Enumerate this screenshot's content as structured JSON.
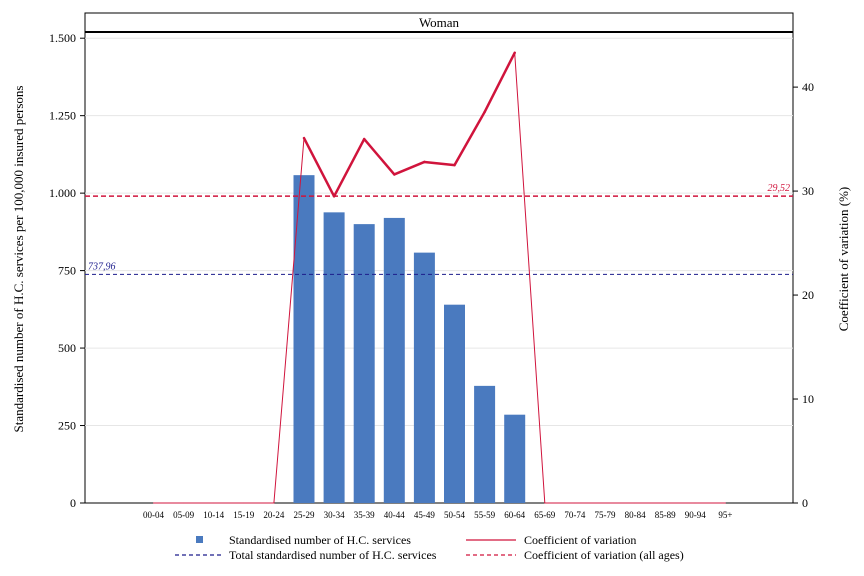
{
  "chart_data": {
    "type": "bar",
    "panel_title": "Woman",
    "categories": [
      "00-04",
      "05-09",
      "10-14",
      "15-19",
      "20-24",
      "25-29",
      "30-34",
      "35-39",
      "40-44",
      "45-49",
      "50-54",
      "55-59",
      "60-64",
      "65-69",
      "70-74",
      "75-79",
      "80-84",
      "85-89",
      "90-94",
      "95+"
    ],
    "series": [
      {
        "name": "Standardised number of H.C. services",
        "kind": "bar",
        "axis": "left",
        "color": "#4a7abf",
        "values": [
          null,
          null,
          null,
          null,
          null,
          1058,
          938,
          900,
          920,
          808,
          640,
          378,
          285,
          null,
          null,
          null,
          null,
          null,
          null,
          null
        ]
      },
      {
        "name": "Coefficient of variation",
        "kind": "line",
        "axis": "right",
        "color": "#d0143c",
        "values": [
          0,
          0,
          0,
          0,
          0,
          35.1,
          29.5,
          35.0,
          31.6,
          32.8,
          32.5,
          37.6,
          43.3,
          0,
          0,
          0,
          0,
          0,
          0,
          0
        ]
      }
    ],
    "reference_lines": [
      {
        "name": "Total standardised number of H.C. services",
        "axis": "left",
        "value": 737.96,
        "label": "737,96",
        "color": "#1c1c8c",
        "style": "dashed"
      },
      {
        "name": "Coefficient of variation (all ages)",
        "axis": "right",
        "value": 29.52,
        "label": "29,52",
        "color": "#d0143c",
        "style": "dashed"
      }
    ],
    "ylabel": "Standardised number of H.C. services per 100,000 insured persons",
    "y2label": "Coefficient of variation (%)",
    "ylim": [
      0,
      1520
    ],
    "y2lim": [
      0,
      45.3
    ],
    "yticks": [
      0,
      250,
      500,
      750,
      1000,
      1250,
      1500
    ],
    "ytick_labels": [
      "0",
      "250",
      "500",
      "750",
      "1.000",
      "1.250",
      "1.500"
    ],
    "y2ticks": [
      0,
      10,
      20,
      30,
      40
    ],
    "y2tick_labels": [
      "0",
      "10",
      "20",
      "30",
      "40"
    ],
    "grid": "horizontal",
    "legend_position": "bottom"
  }
}
